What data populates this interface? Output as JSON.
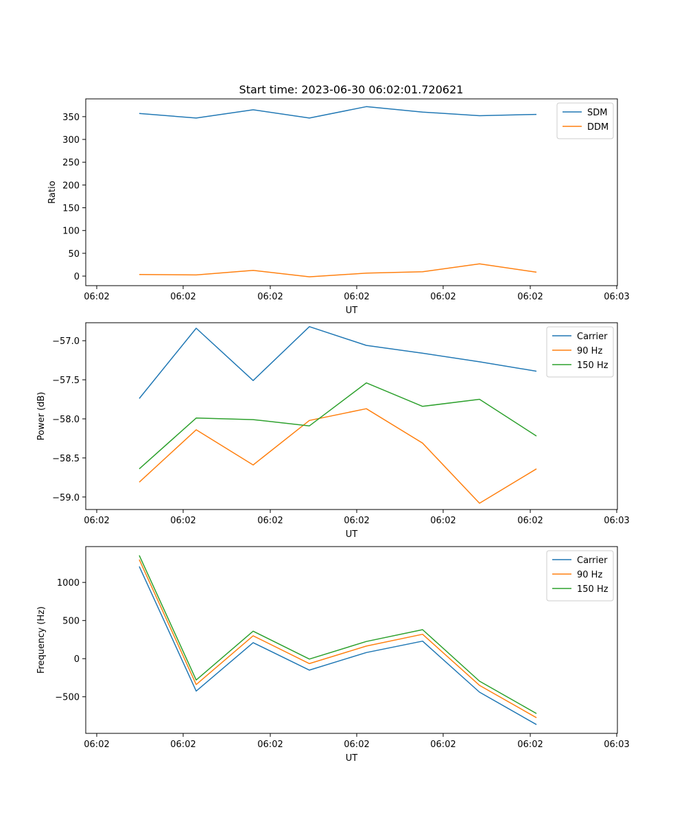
{
  "figure": {
    "title": "Start time: 2023-06-30 06:02:01.720621"
  },
  "chart_data": [
    {
      "type": "line",
      "title": "Start time: 2023-06-30 06:02:01.720621",
      "xlabel": "UT",
      "ylabel": "Ratio",
      "x_tick_labels": [
        "06:02",
        "06:02",
        "06:02",
        "06:02",
        "06:02",
        "06:02",
        "06:03"
      ],
      "ylim": [
        -21,
        389
      ],
      "yticks": [
        0,
        50,
        100,
        150,
        200,
        250,
        300,
        350
      ],
      "legend_position": "top-right",
      "grid": false,
      "series": [
        {
          "name": "SDM",
          "color": "#1f77b4",
          "values": [
            357,
            347,
            365,
            347,
            372,
            360,
            352,
            355
          ]
        },
        {
          "name": "DDM",
          "color": "#ff7f0e",
          "values": [
            3.5,
            2.5,
            12.5,
            -1.5,
            6.5,
            9.5,
            27,
            8.5
          ]
        }
      ]
    },
    {
      "type": "line",
      "title": "",
      "xlabel": "UT",
      "ylabel": "Power (dB)",
      "x_tick_labels": [
        "06:02",
        "06:02",
        "06:02",
        "06:02",
        "06:02",
        "06:02",
        "06:03"
      ],
      "ylim": [
        -59.16,
        -56.77
      ],
      "yticks": [
        -59.0,
        -58.5,
        -58.0,
        -57.5,
        -57.0
      ],
      "y_tick_labels": [
        "−59.0",
        "−58.5",
        "−58.0",
        "−57.5",
        "−57.0"
      ],
      "legend_position": "top-right",
      "grid": false,
      "series": [
        {
          "name": "Carrier",
          "color": "#1f77b4",
          "values": [
            -57.74,
            -56.84,
            -57.51,
            -56.82,
            -57.06,
            -57.16,
            -57.27,
            -57.39
          ]
        },
        {
          "name": "90 Hz",
          "color": "#ff7f0e",
          "values": [
            -58.81,
            -58.14,
            -58.59,
            -58.02,
            -57.87,
            -58.31,
            -59.08,
            -58.64
          ]
        },
        {
          "name": "150 Hz",
          "color": "#2ca02c",
          "values": [
            -58.64,
            -57.99,
            -58.01,
            -58.09,
            -57.54,
            -57.84,
            -57.75,
            -58.22
          ]
        }
      ]
    },
    {
      "type": "line",
      "title": "",
      "xlabel": "UT",
      "ylabel": "Frequency (Hz)",
      "x_tick_labels": [
        "06:02",
        "06:02",
        "06:02",
        "06:02",
        "06:02",
        "06:02",
        "06:03"
      ],
      "ylim": [
        -980,
        1470
      ],
      "yticks": [
        -500,
        0,
        500,
        1000
      ],
      "y_tick_labels": [
        "−500",
        "0",
        "500",
        "1000"
      ],
      "legend_position": "top-right",
      "grid": false,
      "series": [
        {
          "name": "Carrier",
          "color": "#1f77b4",
          "values": [
            1210,
            -425,
            210,
            -150,
            80,
            230,
            -440,
            -865
          ]
        },
        {
          "name": "90 Hz",
          "color": "#ff7f0e",
          "values": [
            1300,
            -340,
            300,
            -65,
            165,
            320,
            -350,
            -775
          ]
        },
        {
          "name": "150 Hz",
          "color": "#2ca02c",
          "values": [
            1355,
            -280,
            360,
            -5,
            225,
            380,
            -295,
            -720
          ]
        }
      ]
    }
  ]
}
